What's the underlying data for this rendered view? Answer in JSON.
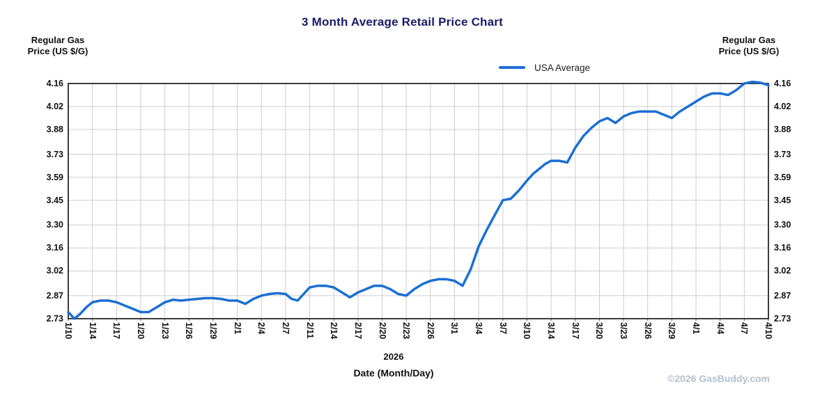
{
  "title": "3 Month Average Retail Price Chart",
  "axis_label": {
    "line1": "Regular Gas",
    "line2": "Price (US $/G)"
  },
  "legend": {
    "label": "USA Average"
  },
  "x_axis": {
    "year_label": "2026",
    "title": "Date (Month/Day)"
  },
  "footer": {
    "copyright": "©2026 GasBuddy.com"
  },
  "colors": {
    "line": "#1c6fd2",
    "grid": "#cdcdcd",
    "plot_border": "#3c3c3c",
    "title": "#1a1a66",
    "copyright": "#b2c0ce"
  },
  "chart_data": {
    "type": "line",
    "title": "3 Month Average Retail Price Chart",
    "xlabel": "Date (Month/Day)",
    "ylabel": "Regular Gas Price (US $/G)",
    "year": "2026",
    "grid": true,
    "legend_position": "top-right",
    "ylim": [
      2.73,
      4.16
    ],
    "y_tick_labels": [
      "4.16",
      "4.02",
      "3.88",
      "3.73",
      "3.59",
      "3.45",
      "3.30",
      "3.16",
      "3.02",
      "2.87",
      "2.73"
    ],
    "x_tick_labels": [
      "1/10",
      "1/14",
      "1/17",
      "1/20",
      "1/23",
      "1/26",
      "1/29",
      "2/1",
      "2/4",
      "2/7",
      "2/11",
      "2/14",
      "2/17",
      "2/20",
      "2/23",
      "2/26",
      "3/1",
      "3/4",
      "3/7",
      "3/10",
      "3/14",
      "3/17",
      "3/20",
      "3/23",
      "3/26",
      "3/29",
      "4/1",
      "4/4",
      "4/7",
      "4/10"
    ],
    "series": [
      {
        "name": "USA Average",
        "color": "#1c6fd2",
        "points": [
          {
            "date": "1/10",
            "value": 2.77
          },
          {
            "date": "1/11",
            "value": 2.73
          },
          {
            "date": "1/12",
            "value": 2.76
          },
          {
            "date": "1/13",
            "value": 2.8
          },
          {
            "date": "1/14",
            "value": 2.83
          },
          {
            "date": "1/15",
            "value": 2.84
          },
          {
            "date": "1/16",
            "value": 2.84
          },
          {
            "date": "1/17",
            "value": 2.83
          },
          {
            "date": "1/18",
            "value": 2.81
          },
          {
            "date": "1/19",
            "value": 2.79
          },
          {
            "date": "1/20",
            "value": 2.77
          },
          {
            "date": "1/21",
            "value": 2.77
          },
          {
            "date": "1/22",
            "value": 2.8
          },
          {
            "date": "1/23",
            "value": 2.83
          },
          {
            "date": "1/24",
            "value": 2.845
          },
          {
            "date": "1/25",
            "value": 2.84
          },
          {
            "date": "1/26",
            "value": 2.845
          },
          {
            "date": "1/27",
            "value": 2.85
          },
          {
            "date": "1/28",
            "value": 2.855
          },
          {
            "date": "1/29",
            "value": 2.855
          },
          {
            "date": "1/30",
            "value": 2.85
          },
          {
            "date": "1/31",
            "value": 2.84
          },
          {
            "date": "2/1",
            "value": 2.84
          },
          {
            "date": "2/2",
            "value": 2.82
          },
          {
            "date": "2/3",
            "value": 2.85
          },
          {
            "date": "2/4",
            "value": 2.87
          },
          {
            "date": "2/5",
            "value": 2.88
          },
          {
            "date": "2/6",
            "value": 2.885
          },
          {
            "date": "2/7",
            "value": 2.88
          },
          {
            "date": "2/8",
            "value": 2.85
          },
          {
            "date": "2/9",
            "value": 2.84
          },
          {
            "date": "2/10",
            "value": 2.88
          },
          {
            "date": "2/11",
            "value": 2.92
          },
          {
            "date": "2/12",
            "value": 2.93
          },
          {
            "date": "2/13",
            "value": 2.93
          },
          {
            "date": "2/14",
            "value": 2.92
          },
          {
            "date": "2/15",
            "value": 2.89
          },
          {
            "date": "2/16",
            "value": 2.86
          },
          {
            "date": "2/17",
            "value": 2.89
          },
          {
            "date": "2/18",
            "value": 2.91
          },
          {
            "date": "2/19",
            "value": 2.93
          },
          {
            "date": "2/20",
            "value": 2.93
          },
          {
            "date": "2/21",
            "value": 2.91
          },
          {
            "date": "2/22",
            "value": 2.88
          },
          {
            "date": "2/23",
            "value": 2.87
          },
          {
            "date": "2/24",
            "value": 2.91
          },
          {
            "date": "2/25",
            "value": 2.94
          },
          {
            "date": "2/26",
            "value": 2.96
          },
          {
            "date": "2/27",
            "value": 2.97
          },
          {
            "date": "2/28",
            "value": 2.97
          },
          {
            "date": "3/1",
            "value": 2.96
          },
          {
            "date": "3/2",
            "value": 2.93
          },
          {
            "date": "3/3",
            "value": 3.03
          },
          {
            "date": "3/4",
            "value": 3.17
          },
          {
            "date": "3/5",
            "value": 3.27
          },
          {
            "date": "3/6",
            "value": 3.36
          },
          {
            "date": "3/7",
            "value": 3.45
          },
          {
            "date": "3/8",
            "value": 3.46
          },
          {
            "date": "3/9",
            "value": 3.51
          },
          {
            "date": "3/10",
            "value": 3.57
          },
          {
            "date": "3/11",
            "value": 3.61
          },
          {
            "date": "3/12",
            "value": 3.64
          },
          {
            "date": "3/13",
            "value": 3.67
          },
          {
            "date": "3/14",
            "value": 3.69
          },
          {
            "date": "3/15",
            "value": 3.69
          },
          {
            "date": "3/16",
            "value": 3.68
          },
          {
            "date": "3/17",
            "value": 3.77
          },
          {
            "date": "3/18",
            "value": 3.84
          },
          {
            "date": "3/19",
            "value": 3.89
          },
          {
            "date": "3/20",
            "value": 3.93
          },
          {
            "date": "3/21",
            "value": 3.95
          },
          {
            "date": "3/22",
            "value": 3.92
          },
          {
            "date": "3/23",
            "value": 3.96
          },
          {
            "date": "3/24",
            "value": 3.98
          },
          {
            "date": "3/25",
            "value": 3.99
          },
          {
            "date": "3/26",
            "value": 3.99
          },
          {
            "date": "3/27",
            "value": 3.99
          },
          {
            "date": "3/28",
            "value": 3.97
          },
          {
            "date": "3/29",
            "value": 3.95
          },
          {
            "date": "3/30",
            "value": 3.99
          },
          {
            "date": "3/31",
            "value": 4.02
          },
          {
            "date": "4/1",
            "value": 4.05
          },
          {
            "date": "4/2",
            "value": 4.08
          },
          {
            "date": "4/3",
            "value": 4.1
          },
          {
            "date": "4/4",
            "value": 4.1
          },
          {
            "date": "4/5",
            "value": 4.09
          },
          {
            "date": "4/6",
            "value": 4.12
          },
          {
            "date": "4/7",
            "value": 4.16
          },
          {
            "date": "4/8",
            "value": 4.17
          },
          {
            "date": "4/9",
            "value": 4.165
          },
          {
            "date": "4/10",
            "value": 4.15
          }
        ]
      }
    ]
  }
}
